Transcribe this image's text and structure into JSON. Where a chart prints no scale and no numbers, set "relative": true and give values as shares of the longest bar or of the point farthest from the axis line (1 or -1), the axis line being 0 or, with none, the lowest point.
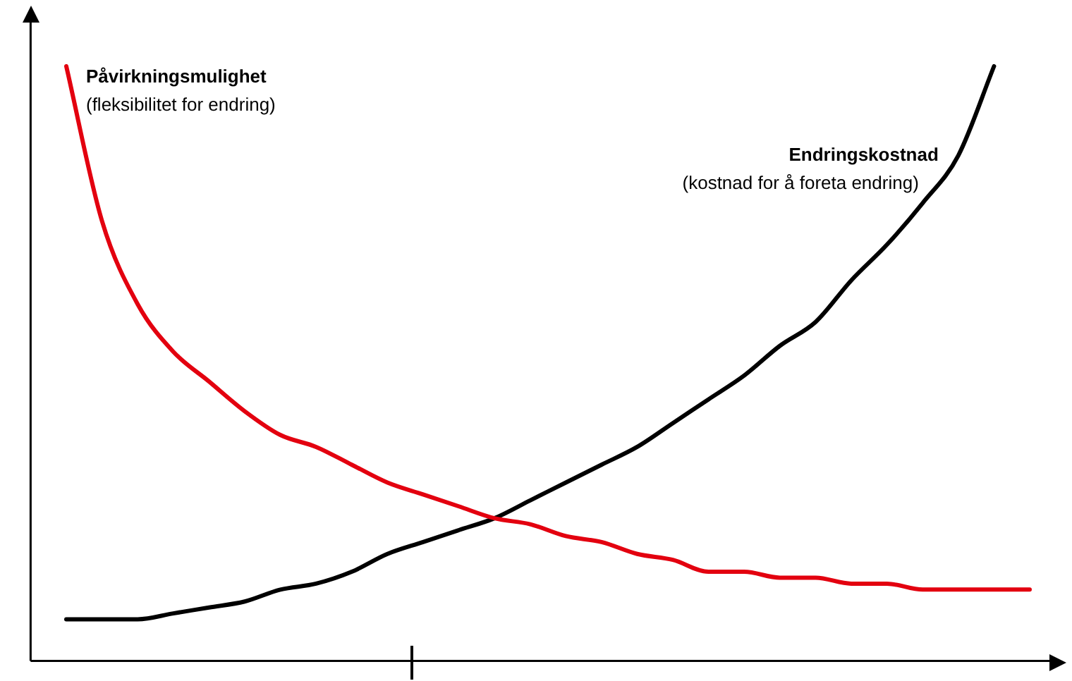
{
  "chart_data": {
    "type": "line",
    "relative": true,
    "categories": [
      null,
      null,
      null,
      null,
      null,
      null,
      null,
      null,
      null,
      null,
      null,
      null,
      null,
      null,
      null,
      null,
      null,
      null,
      null,
      null,
      null,
      null,
      null,
      null,
      null,
      null,
      null,
      null,
      null,
      null
    ],
    "series": [
      {
        "name": "Påvirkningsmulighet",
        "color": "#e3000f",
        "values": [
          null,
          1.0,
          0.74,
          0.6,
          0.52,
          0.47,
          0.42,
          0.38,
          0.36,
          0.33,
          0.3,
          0.28,
          0.26,
          0.24,
          0.23,
          0.21,
          0.2,
          0.18,
          0.17,
          0.15,
          0.15,
          0.14,
          0.14,
          0.13,
          0.13,
          0.12,
          0.12,
          0.12,
          0.12,
          null
        ]
      },
      {
        "name": "Endringskostnad",
        "color": "#000000",
        "values": [
          null,
          0.07,
          0.07,
          0.07,
          0.08,
          0.09,
          0.1,
          0.12,
          0.13,
          0.15,
          0.18,
          0.2,
          0.22,
          0.24,
          0.27,
          0.3,
          0.33,
          0.36,
          0.4,
          0.44,
          0.48,
          0.53,
          0.57,
          0.64,
          0.7,
          0.77,
          0.85,
          1.0,
          null,
          null
        ]
      }
    ],
    "annotations": [
      "(fleksibilitet for endring)",
      "(kostnad for å foreta endring)"
    ],
    "legend": false,
    "grid": false,
    "marker": "none",
    "line_style": "solid"
  }
}
